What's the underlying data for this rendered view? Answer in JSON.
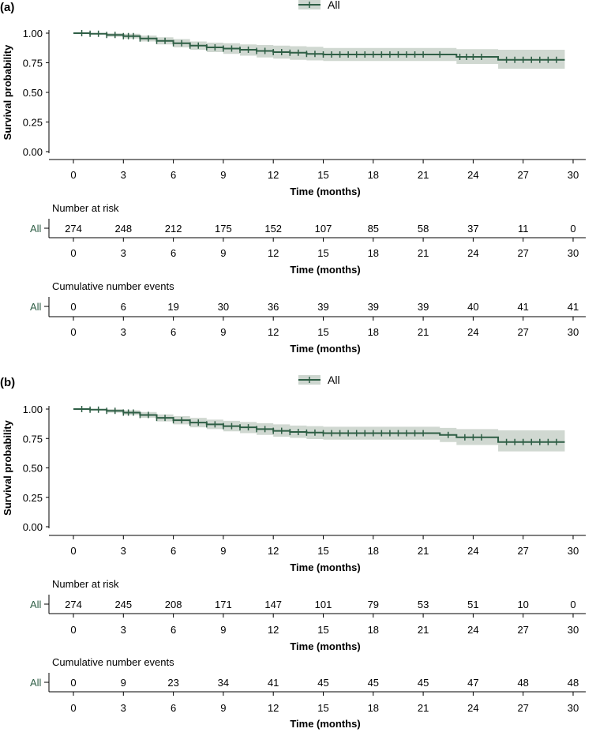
{
  "panels": [
    {
      "label": "(a)",
      "legend_label": "All",
      "table_titles": {
        "risk": "Number at risk",
        "events": "Cumulative number events"
      },
      "row_label": "All"
    },
    {
      "label": "(b)",
      "legend_label": "All",
      "table_titles": {
        "risk": "Number at risk",
        "events": "Cumulative number events"
      },
      "row_label": "All"
    }
  ],
  "colors": {
    "curve": "#2e5e45",
    "band": "#cdd6cf"
  },
  "chart_data": [
    {
      "type": "line",
      "title": "",
      "xlabel": "Time (months)",
      "ylabel": "Survival probability",
      "xlim": [
        0,
        30
      ],
      "ylim": [
        0,
        1
      ],
      "xticks": [
        0,
        3,
        6,
        9,
        12,
        15,
        18,
        21,
        24,
        27,
        30
      ],
      "yticks": [
        "0.00",
        "0.25",
        "0.50",
        "0.75",
        "1.00"
      ],
      "legend": "top-center",
      "series": [
        {
          "name": "All",
          "x": [
            0,
            1,
            2,
            3,
            4,
            5,
            6,
            7,
            8,
            9,
            10,
            11,
            12,
            13,
            14,
            15,
            18,
            21,
            23,
            25.5,
            29.5
          ],
          "y": [
            1.0,
            0.995,
            0.985,
            0.975,
            0.955,
            0.935,
            0.915,
            0.895,
            0.88,
            0.87,
            0.86,
            0.85,
            0.84,
            0.835,
            0.825,
            0.82,
            0.82,
            0.82,
            0.8,
            0.775,
            0.775
          ],
          "lower": [
            1.0,
            0.99,
            0.97,
            0.955,
            0.93,
            0.905,
            0.88,
            0.86,
            0.84,
            0.825,
            0.81,
            0.795,
            0.785,
            0.775,
            0.77,
            0.765,
            0.765,
            0.765,
            0.74,
            0.7,
            0.7
          ],
          "upper": [
            1.0,
            1.0,
            1.0,
            0.995,
            0.98,
            0.965,
            0.95,
            0.93,
            0.92,
            0.915,
            0.905,
            0.9,
            0.895,
            0.89,
            0.885,
            0.875,
            0.875,
            0.875,
            0.865,
            0.86,
            0.86
          ],
          "censor_x": [
            0.5,
            1,
            1.5,
            2,
            2.5,
            3,
            3.3,
            3.6,
            4,
            4.5,
            5,
            5.5,
            6,
            6.5,
            7,
            7.5,
            8,
            8.5,
            9,
            9.5,
            10,
            10.5,
            11,
            11.5,
            12,
            12.5,
            13,
            13.5,
            14,
            14.5,
            15,
            15.5,
            16,
            16.5,
            17,
            17.5,
            18,
            18.5,
            19,
            19.5,
            20,
            20.5,
            21,
            22,
            23.2,
            23.6,
            24,
            24.5,
            26,
            26.5,
            27,
            27.5,
            28,
            28.5,
            29
          ]
        }
      ],
      "risk_table": {
        "times": [
          0,
          3,
          6,
          9,
          12,
          15,
          18,
          21,
          24,
          27,
          30
        ],
        "at_risk": [
          274,
          248,
          212,
          175,
          152,
          107,
          85,
          58,
          37,
          11,
          0
        ],
        "cumulative_events": [
          0,
          6,
          19,
          30,
          36,
          39,
          39,
          39,
          40,
          41,
          41
        ]
      }
    },
    {
      "type": "line",
      "title": "",
      "xlabel": "Time (months)",
      "ylabel": "Survival probability",
      "xlim": [
        0,
        30
      ],
      "ylim": [
        0,
        1
      ],
      "xticks": [
        0,
        3,
        6,
        9,
        12,
        15,
        18,
        21,
        24,
        27,
        30
      ],
      "yticks": [
        "0.00",
        "0.25",
        "0.50",
        "0.75",
        "1.00"
      ],
      "legend": "top-center",
      "series": [
        {
          "name": "All",
          "x": [
            0,
            1,
            2,
            3,
            4,
            5,
            6,
            7,
            8,
            9,
            10,
            11,
            12,
            13,
            14,
            15,
            18,
            21,
            22,
            23,
            25.5,
            29.5
          ],
          "y": [
            1.0,
            0.995,
            0.985,
            0.97,
            0.95,
            0.925,
            0.905,
            0.885,
            0.87,
            0.855,
            0.845,
            0.83,
            0.815,
            0.805,
            0.8,
            0.795,
            0.795,
            0.795,
            0.78,
            0.76,
            0.72,
            0.72
          ],
          "lower": [
            1.0,
            0.99,
            0.97,
            0.95,
            0.925,
            0.895,
            0.87,
            0.845,
            0.83,
            0.81,
            0.795,
            0.78,
            0.765,
            0.755,
            0.745,
            0.74,
            0.74,
            0.74,
            0.72,
            0.695,
            0.64,
            0.64
          ],
          "upper": [
            1.0,
            1.0,
            1.0,
            0.99,
            0.975,
            0.955,
            0.94,
            0.925,
            0.91,
            0.9,
            0.89,
            0.88,
            0.87,
            0.86,
            0.855,
            0.85,
            0.85,
            0.85,
            0.84,
            0.83,
            0.82,
            0.82
          ],
          "censor_x": [
            0.5,
            1,
            1.5,
            2,
            2.5,
            3,
            3.3,
            3.6,
            4,
            4.5,
            5,
            5.5,
            6,
            6.5,
            7,
            7.5,
            8,
            8.5,
            9,
            9.5,
            10,
            10.5,
            11,
            11.5,
            12,
            12.5,
            13,
            13.5,
            14,
            14.5,
            15,
            15.5,
            16,
            16.5,
            17,
            17.5,
            18,
            18.5,
            19,
            19.5,
            20,
            20.5,
            21,
            22.5,
            23.5,
            24,
            24.5,
            26,
            26.5,
            27,
            27.5,
            28,
            28.5,
            29
          ]
        }
      ],
      "risk_table": {
        "times": [
          0,
          3,
          6,
          9,
          12,
          15,
          18,
          21,
          24,
          27,
          30
        ],
        "at_risk": [
          274,
          245,
          208,
          171,
          147,
          101,
          79,
          53,
          51,
          10,
          0
        ],
        "cumulative_events": [
          0,
          9,
          23,
          34,
          41,
          45,
          45,
          45,
          47,
          48,
          48
        ]
      }
    }
  ]
}
